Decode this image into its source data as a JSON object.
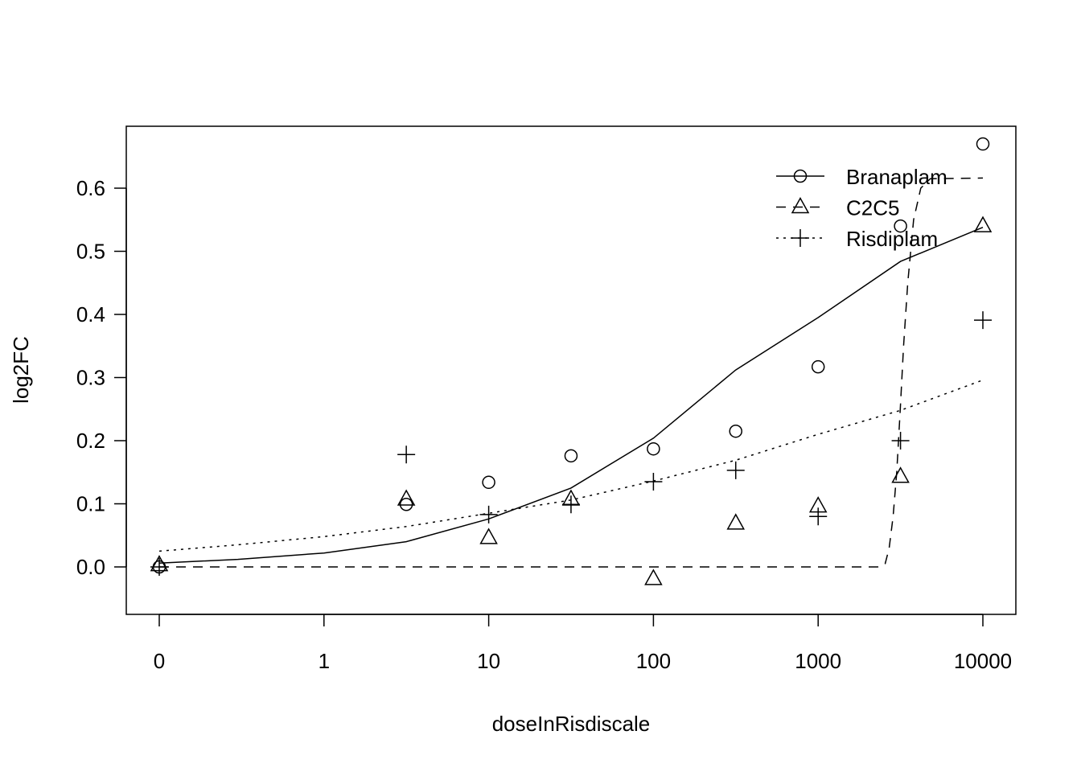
{
  "chart_data": {
    "type": "line",
    "title": "",
    "xlabel": "doseInRisdiscale",
    "ylabel": "log2FC",
    "x_scale": "log (0 plotted one decade below 1)",
    "x_ticks": [
      0,
      1,
      10,
      100,
      1000,
      10000
    ],
    "x_tick_labels": [
      "0",
      "1",
      "10",
      "100",
      "1000",
      "10000"
    ],
    "y_ticks": [
      0.0,
      0.1,
      0.2,
      0.3,
      0.4,
      0.5,
      0.6
    ],
    "y_tick_labels": [
      "0.0",
      "0.1",
      "0.2",
      "0.3",
      "0.4",
      "0.5",
      "0.6"
    ],
    "ylim": [
      -0.075,
      0.7
    ],
    "grid": false,
    "legend_position": "top-right",
    "series": [
      {
        "name": "Branaplam",
        "marker": "circle",
        "line": "solid",
        "points": {
          "x": [
            0,
            3.16,
            10,
            31.6,
            100,
            316,
            1000,
            3162,
            10000
          ],
          "y": [
            0.0,
            0.099,
            0.134,
            0.176,
            0.187,
            0.215,
            0.317,
            0.54,
            0.67
          ]
        },
        "curve": {
          "x": [
            0,
            0.3,
            1,
            3.16,
            10,
            31.6,
            100,
            316,
            1000,
            3162,
            10000
          ],
          "y": [
            0.006,
            0.012,
            0.022,
            0.04,
            0.076,
            0.125,
            0.204,
            0.312,
            0.395,
            0.484,
            0.538
          ]
        }
      },
      {
        "name": "C2C5",
        "marker": "triangle",
        "line": "dashed",
        "points": {
          "x": [
            0,
            3.16,
            10,
            31.6,
            100,
            316,
            1000,
            3162,
            10000
          ],
          "y": [
            0.003,
            0.107,
            0.046,
            0.107,
            -0.019,
            0.069,
            0.096,
            0.143,
            0.54
          ]
        },
        "curve": {
          "x": [
            0,
            100,
            2300,
            2550,
            2700,
            2850,
            3000,
            3150,
            3300,
            3500,
            3800,
            4200,
            4800,
            10000
          ],
          "y": [
            0,
            0,
            0,
            0.005,
            0.03,
            0.08,
            0.15,
            0.25,
            0.35,
            0.45,
            0.55,
            0.6,
            0.615,
            0.616
          ]
        }
      },
      {
        "name": "Risdiplam",
        "marker": "plus",
        "line": "dotted",
        "points": {
          "x": [
            0,
            3.16,
            10,
            31.6,
            100,
            316,
            1000,
            3162,
            10000
          ],
          "y": [
            0.0,
            0.178,
            0.083,
            0.099,
            0.135,
            0.153,
            0.08,
            0.2,
            0.391
          ]
        },
        "curve": {
          "x": [
            0,
            0.3,
            1,
            3.16,
            10,
            31.6,
            100,
            316,
            1000,
            3162,
            10000
          ],
          "y": [
            0.025,
            0.035,
            0.048,
            0.064,
            0.085,
            0.106,
            0.136,
            0.169,
            0.21,
            0.248,
            0.296
          ]
        }
      }
    ]
  }
}
